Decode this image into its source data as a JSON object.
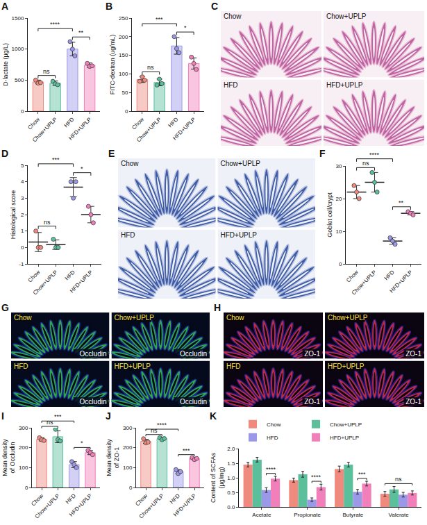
{
  "chart_data": [
    {
      "panel": "A",
      "type": "bar",
      "categories": [
        "Chow",
        "Chow+UPLP",
        "HFD",
        "HFD+UPLP"
      ],
      "values": [
        470,
        450,
        1000,
        740
      ],
      "error": [
        30,
        35,
        110,
        35
      ],
      "points": [
        [
          500,
          450,
          460
        ],
        [
          480,
          440,
          425
        ],
        [
          1120,
          1000,
          890
        ],
        [
          770,
          720,
          730
        ]
      ],
      "colors": [
        "#F08A7E",
        "#5CBF9B",
        "#9C98E8",
        "#F17FB9"
      ],
      "y_label": "D-lactate (μg/L)",
      "ylim": [
        0,
        1500
      ],
      "yticks": [
        0,
        500,
        1000,
        1500
      ],
      "annotations": [
        {
          "from": "Chow",
          "to": "Chow+UPLP",
          "text": "ns"
        },
        {
          "from": "HFD",
          "to": "HFD+UPLP",
          "text": "**"
        },
        {
          "from": "Chow",
          "to": "HFD",
          "text": "****"
        }
      ]
    },
    {
      "panel": "B",
      "type": "bar",
      "categories": [
        "Chow",
        "Chow+UPLP",
        "HFD",
        "HFD+UPLP"
      ],
      "values": [
        85,
        77,
        175,
        128
      ],
      "error": [
        8,
        9,
        22,
        15
      ],
      "points": [
        [
          80,
          92,
          83
        ],
        [
          70,
          86,
          74
        ],
        [
          200,
          168,
          157
        ],
        [
          145,
          128,
          112
        ]
      ],
      "colors": [
        "#F08A7E",
        "#5CBF9B",
        "#9C98E8",
        "#F17FB9"
      ],
      "y_label": "FITC-dextran (ug/mL)",
      "ylim": [
        0,
        250
      ],
      "yticks": [
        0,
        50,
        100,
        150,
        200,
        250
      ],
      "annotations": [
        {
          "from": "Chow",
          "to": "Chow+UPLP",
          "text": "ns"
        },
        {
          "from": "HFD",
          "to": "HFD+UPLP",
          "text": "*"
        },
        {
          "from": "Chow",
          "to": "HFD",
          "text": "***"
        }
      ]
    },
    {
      "panel": "D",
      "type": "scatter",
      "categories": [
        "Chow",
        "Chow+UPLP",
        "HFD",
        "HFD+UPLP"
      ],
      "values": [
        0.33,
        0.17,
        3.67,
        2.0
      ],
      "error": [
        0.58,
        0.29,
        0.58,
        0.5
      ],
      "points": [
        [
          1,
          0,
          0
        ],
        [
          0.5,
          0,
          0
        ],
        [
          4,
          3,
          4
        ],
        [
          2.5,
          2,
          1.5
        ]
      ],
      "colors": [
        "#F08A7E",
        "#5CBF9B",
        "#9C98E8",
        "#F17FB9"
      ],
      "y_label": "Histological score",
      "ylim": [
        -1,
        5
      ],
      "yticks": [
        -1,
        0,
        1,
        2,
        3,
        4,
        5
      ],
      "annotations": [
        {
          "from": "Chow",
          "to": "Chow+UPLP",
          "text": "ns"
        },
        {
          "from": "HFD",
          "to": "HFD+UPLP",
          "text": "*"
        },
        {
          "from": "Chow",
          "to": "HFD",
          "text": "***"
        }
      ]
    },
    {
      "panel": "F",
      "type": "scatter",
      "categories": [
        "Chow",
        "Chow+UPLP",
        "HFD",
        "HFD+UPLP"
      ],
      "values": [
        22,
        25,
        7,
        15.5
      ],
      "error": [
        2,
        3,
        1,
        0.5
      ],
      "points": [
        [
          24,
          22,
          20
        ],
        [
          28,
          25,
          22
        ],
        [
          8,
          7,
          6
        ],
        [
          16,
          15.5,
          15
        ]
      ],
      "colors": [
        "#F08A7E",
        "#5CBF9B",
        "#9C98E8",
        "#F17FB9"
      ],
      "y_label": "Goblet cell/crypt",
      "ylim": [
        0,
        30
      ],
      "yticks": [
        0,
        10,
        20,
        30
      ],
      "annotations": [
        {
          "from": "Chow",
          "to": "Chow+UPLP",
          "text": "ns"
        },
        {
          "from": "HFD",
          "to": "HFD+UPLP",
          "text": "**"
        },
        {
          "from": "Chow",
          "to": "HFD",
          "text": "****"
        }
      ]
    },
    {
      "panel": "I",
      "type": "bar",
      "categories": [
        "Chow",
        "Chow+UPLP",
        "HFD",
        "HFD+UPLP"
      ],
      "values": [
        242,
        255,
        115,
        175
      ],
      "error": [
        8,
        30,
        15,
        10
      ],
      "points": [
        [
          250,
          240,
          236
        ],
        [
          292,
          240,
          234
        ],
        [
          130,
          115,
          100
        ],
        [
          186,
          175,
          165
        ]
      ],
      "colors": [
        "#F08A7E",
        "#5CBF9B",
        "#9C98E8",
        "#F17FB9"
      ],
      "y_label": "Mean density of Occludin",
      "ylim": [
        0,
        300
      ],
      "yticks": [
        0,
        100,
        200,
        300
      ],
      "annotations": [
        {
          "from": "Chow",
          "to": "Chow+UPLP",
          "text": "ns"
        },
        {
          "from": "HFD",
          "to": "HFD+UPLP",
          "text": "*"
        },
        {
          "from": "Chow",
          "to": "HFD",
          "text": "***"
        }
      ]
    },
    {
      "panel": "J",
      "type": "bar",
      "categories": [
        "Chow",
        "Chow+UPLP",
        "HFD",
        "HFD+UPLP"
      ],
      "values": [
        232,
        245,
        80,
        145
      ],
      "error": [
        10,
        6,
        10,
        5
      ],
      "points": [
        [
          245,
          224,
          228
        ],
        [
          250,
          240,
          246
        ],
        [
          90,
          70,
          80
        ],
        [
          150,
          140,
          146
        ]
      ],
      "colors": [
        "#F08A7E",
        "#5CBF9B",
        "#9C98E8",
        "#F17FB9"
      ],
      "y_label": "Mean density of ZO-1",
      "ylim": [
        0,
        300
      ],
      "yticks": [
        0,
        100,
        200,
        300
      ],
      "annotations": [
        {
          "from": "Chow",
          "to": "Chow+UPLP",
          "text": "ns"
        },
        {
          "from": "HFD",
          "to": "HFD+UPLP",
          "text": "***"
        },
        {
          "from": "Chow",
          "to": "HFD",
          "text": "****"
        }
      ]
    },
    {
      "panel": "K",
      "type": "bar",
      "categories": [
        "Acetate",
        "Propionate",
        "Butyrate",
        "Valerate"
      ],
      "series": [
        {
          "name": "Chow",
          "color": "#F08A7E",
          "values": [
            1.45,
            0.92,
            1.3,
            0.45
          ],
          "error": [
            0.08,
            0.07,
            0.1,
            0.08
          ]
        },
        {
          "name": "Chow+UPLP",
          "color": "#5CBF9B",
          "values": [
            1.62,
            1.12,
            1.45,
            0.6
          ],
          "error": [
            0.08,
            0.1,
            0.08,
            0.1
          ]
        },
        {
          "name": "HFD",
          "color": "#9C98E8",
          "values": [
            0.58,
            0.25,
            0.52,
            0.42
          ],
          "error": [
            0.08,
            0.06,
            0.08,
            0.08
          ]
        },
        {
          "name": "HFD+UPLP",
          "color": "#F17FB9",
          "values": [
            0.97,
            0.68,
            0.8,
            0.48
          ],
          "error": [
            0.08,
            0.1,
            0.08,
            0.07
          ]
        }
      ],
      "y_label": "Content of SCFAs (μg/mg)",
      "ylim": [
        0,
        2
      ],
      "yticks": [
        {
          "value": 0,
          "label": "0.0"
        },
        {
          "value": 0.5,
          "label": "0.5"
        },
        {
          "value": 1,
          "label": "1.0"
        },
        {
          "value": 1.5,
          "label": "1.5"
        },
        {
          "value": 2,
          "label": "2.0"
        }
      ],
      "legend": "top",
      "annotations": [
        {
          "category": "Acetate",
          "from": "HFD",
          "to": "HFD+UPLP",
          "text": "****"
        },
        {
          "category": "Propionate",
          "from": "HFD",
          "to": "HFD+UPLP",
          "text": "****"
        },
        {
          "category": "Butyrate",
          "from": "HFD",
          "to": "HFD+UPLP",
          "text": "***"
        },
        {
          "category": "Valerate",
          "from": "Chow",
          "to": "HFD+UPLP",
          "text": "ns"
        }
      ]
    }
  ],
  "images": [
    {
      "panel": "C",
      "tiles": [
        "Chow",
        "Chow+UPLP",
        "HFD",
        "HFD+UPLP"
      ]
    },
    {
      "panel": "E",
      "tiles": [
        "Chow",
        "Chow+UPLP",
        "HFD",
        "HFD+UPLP"
      ]
    },
    {
      "panel": "G",
      "tiles": [
        "Chow",
        "Chow+UPLP",
        "HFD",
        "HFD+UPLP"
      ],
      "tile_text": "Occludin"
    },
    {
      "panel": "H",
      "tiles": [
        "Chow",
        "Chow+UPLP",
        "HFD",
        "HFD+UPLP"
      ],
      "tile_text": "ZO-1"
    }
  ]
}
